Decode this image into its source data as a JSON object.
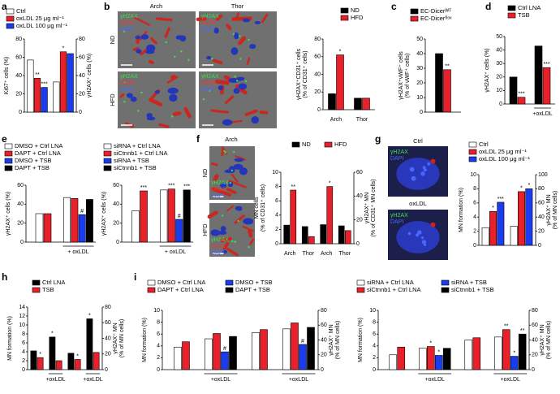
{
  "panel_labels": [
    "a",
    "b",
    "c",
    "d",
    "e",
    "f",
    "g",
    "h",
    "i"
  ],
  "images": {
    "b": {
      "columns": [
        "Arch",
        "Thor"
      ],
      "rows": [
        "ND",
        "HFD"
      ],
      "channels": [
        "γH2AX",
        "CD31",
        "DAPI"
      ]
    },
    "f": {
      "column": "Arch",
      "rows": [
        "ND",
        "HFD"
      ],
      "channels": [
        "γH2AX",
        "CD31",
        "DAPI"
      ]
    },
    "g": {
      "rows": [
        "Ctrl",
        "oxLDL"
      ],
      "channels": [
        "γH2AX",
        "DAPI"
      ]
    }
  },
  "chart_data": [
    {
      "type": "bar",
      "ylabel": [
        "Ki67⁺ cells (%)"
      ],
      "y2label": [
        "γH2AX⁺ cells (%)"
      ],
      "ylim": [
        0,
        80
      ],
      "yticks": [
        0,
        20,
        40,
        60,
        80
      ],
      "y2lim": [
        0,
        80
      ],
      "y2ticks": [
        0,
        20,
        40,
        60,
        80
      ],
      "categories": [
        null,
        null
      ],
      "category_axis": [
        "y",
        "y2"
      ],
      "series": [
        {
          "name": "Ctrl",
          "color": "#ffffff",
          "values": [
            57,
            33
          ]
        },
        {
          "name": "oxLDL 25 μg ml⁻¹",
          "color": "#e8202a",
          "values": [
            37,
            66
          ],
          "significance": [
            "**",
            "*"
          ]
        },
        {
          "name": "oxLDL 100 μg ml⁻¹",
          "color": "#1a3cf0",
          "values": [
            27,
            64
          ],
          "significance": [
            "***",
            null
          ]
        }
      ]
    },
    {
      "type": "bar",
      "ylabel": [
        "γH2AX⁺CD31⁺ cells",
        "(% of CD31⁺ cells)"
      ],
      "ylim": [
        0,
        80
      ],
      "yticks": [
        0,
        20,
        40,
        60,
        80
      ],
      "categories": [
        "Arch",
        "Thor"
      ],
      "series": [
        {
          "name": "ND",
          "color": "#000000",
          "values": [
            18,
            13
          ]
        },
        {
          "name": "HFD",
          "color": "#e8202a",
          "values": [
            62,
            13
          ],
          "significance": [
            "*",
            null
          ]
        }
      ]
    },
    {
      "type": "bar",
      "ylabel": [
        "γH2AX⁺vWF⁺ cells",
        "(% of vWF⁺ cells)"
      ],
      "ylim": [
        0,
        50
      ],
      "yticks": [
        0,
        10,
        20,
        30,
        40,
        50
      ],
      "categories": [
        null
      ],
      "series": [
        {
          "name": "EC-Dicerᵂᵀ",
          "color": "#000000",
          "values": [
            40
          ]
        },
        {
          "name": "EC-Dicerᶠˡᵒˣ",
          "color": "#e8202a",
          "values": [
            29
          ],
          "significance": [
            "**"
          ]
        }
      ]
    },
    {
      "type": "bar",
      "ylabel": [
        "γH2AX⁺ cells (%)"
      ],
      "ylim": [
        0,
        50
      ],
      "yticks": [
        0,
        10,
        20,
        30,
        40,
        50
      ],
      "categories": [
        null,
        "+oxLDL"
      ],
      "series": [
        {
          "name": "Ctrl LNA",
          "color": "#000000",
          "values": [
            20,
            43
          ]
        },
        {
          "name": "TSB",
          "color": "#e8202a",
          "values": [
            5,
            27
          ],
          "significance": [
            "***",
            "***"
          ]
        }
      ]
    },
    {
      "type": "bar",
      "ylabel": [
        "γH2AX⁺ cells (%)"
      ],
      "ylim": [
        0,
        60
      ],
      "yticks": [
        0,
        20,
        40,
        60
      ],
      "categories": [
        null,
        "+ oxLDL"
      ],
      "series": [
        {
          "name": "DMSO + Ctrl LNA",
          "color": "#ffffff",
          "values": [
            30,
            47
          ]
        },
        {
          "name": "DAPT + Ctrl LNA",
          "color": "#e8202a",
          "values": [
            30,
            46
          ]
        },
        {
          "name": "DMSO + TSB",
          "color": "#1a3cf0",
          "values": [
            null,
            29
          ],
          "significance": [
            null,
            "#"
          ]
        },
        {
          "name": "DAPT + TSB",
          "color": "#000000",
          "values": [
            null,
            45
          ]
        }
      ]
    },
    {
      "type": "bar",
      "ylabel": [
        "γH2AX⁺ cells (%)"
      ],
      "ylim": [
        0,
        60
      ],
      "yticks": [
        0,
        20,
        40,
        60
      ],
      "categories": [
        null,
        "+ oxLDL"
      ],
      "series": [
        {
          "name": "siRNA + Ctrl LNA",
          "color": "#ffffff",
          "values": [
            33,
            55
          ]
        },
        {
          "name": "siCtnnb1 + Ctrl LNA",
          "color": "#e8202a",
          "values": [
            54,
            56
          ],
          "significance": [
            "***",
            "***"
          ]
        },
        {
          "name": "siRNA + TSB",
          "color": "#1a3cf0",
          "values": [
            null,
            24
          ],
          "significance": [
            null,
            "#"
          ]
        },
        {
          "name": "siCtnnb1 + TSB",
          "color": "#000000",
          "values": [
            null,
            55
          ],
          "significance": [
            null,
            "***"
          ]
        }
      ]
    },
    {
      "type": "bar",
      "ylabel": [
        "MN cells",
        "(% of CD31⁺ cells)"
      ],
      "y2label": [
        "γH2AX⁺ MN",
        "(% of CD31⁺ MN cells)"
      ],
      "ylim": [
        0,
        10
      ],
      "yticks": [
        0,
        2,
        4,
        6,
        8,
        10
      ],
      "y2lim": [
        0,
        60
      ],
      "y2ticks": [
        0,
        20,
        40,
        60
      ],
      "categories": [
        "Arch",
        "Thor",
        "Arch",
        "Thor"
      ],
      "category_axis": [
        "y",
        "y",
        "y2",
        "y2"
      ],
      "series": [
        {
          "name": "ND",
          "color": "#000000",
          "values": [
            2.6,
            2.4,
            16,
            15
          ]
        },
        {
          "name": "HFD",
          "color": "#e8202a",
          "values": [
            7.5,
            1.0,
            48,
            11
          ],
          "significance": [
            "**",
            null,
            "*",
            null
          ]
        }
      ]
    },
    {
      "type": "bar",
      "ylabel": [
        "MN formation (%)"
      ],
      "y2label": [
        "γH2AX⁺ MN",
        "(% of MN cells)"
      ],
      "ylim": [
        0,
        10
      ],
      "yticks": [
        0,
        2,
        4,
        6,
        8,
        10
      ],
      "y2lim": [
        0,
        100
      ],
      "y2ticks": [
        0,
        20,
        40,
        60,
        80,
        100
      ],
      "categories": [
        null,
        null
      ],
      "category_axis": [
        "y",
        "y2"
      ],
      "series": [
        {
          "name": "Ctrl",
          "color": "#ffffff",
          "values": [
            2.5,
            27
          ]
        },
        {
          "name": "oxLDL 25 μg ml⁻¹",
          "color": "#e8202a",
          "values": [
            4.8,
            76
          ],
          "significance": [
            "*",
            "*"
          ]
        },
        {
          "name": "oxLDL 100 μg ml⁻¹",
          "color": "#1a3cf0",
          "values": [
            6.1,
            80
          ],
          "significance": [
            "***",
            "*"
          ]
        }
      ]
    },
    {
      "type": "bar",
      "ylabel": [
        "MN formation (%)"
      ],
      "y2label": [
        "γH2AX⁺ MN",
        "(% of MN cells)"
      ],
      "ylim": [
        0,
        14
      ],
      "yticks": [
        0,
        2,
        4,
        6,
        8,
        10,
        12,
        14
      ],
      "y2lim": [
        0,
        80
      ],
      "y2ticks": [
        0,
        20,
        40,
        60,
        80
      ],
      "categories": [
        null,
        "+oxLDL",
        null,
        "+oxLDL"
      ],
      "category_axis": [
        "y",
        "y",
        "y2",
        "y2"
      ],
      "series": [
        {
          "name": "Ctrl LNA",
          "color": "#000000",
          "values": [
            4.2,
            7.3,
            21,
            65
          ],
          "significance": [
            null,
            "*",
            null,
            "*"
          ]
        },
        {
          "name": "TSB",
          "color": "#e8202a",
          "values": [
            2.7,
            2.0,
            13,
            22
          ],
          "significance": [
            "*",
            null,
            "*",
            null
          ]
        }
      ]
    },
    {
      "type": "bar",
      "ylabel": [
        "MN formation (%)"
      ],
      "y2label": [
        "γH2AX⁺ MN",
        "(% of MN cells)"
      ],
      "ylim": [
        0,
        10
      ],
      "yticks": [
        0,
        2,
        4,
        6,
        8,
        10
      ],
      "y2lim": [
        0,
        80
      ],
      "y2ticks": [
        0,
        20,
        40,
        60,
        80
      ],
      "categories": [
        null,
        "+oxLDL",
        null,
        "+oxLDL"
      ],
      "category_axis": [
        "y",
        "y",
        "y2",
        "y2"
      ],
      "series": [
        {
          "name": "DMSO + Ctrl LNA",
          "color": "#ffffff",
          "values": [
            3.8,
            5.2,
            50,
            55
          ]
        },
        {
          "name": "DAPT + Ctrl LNA",
          "color": "#e8202a",
          "values": [
            4.7,
            6.1,
            54,
            63
          ]
        },
        {
          "name": "DMSO + TSB",
          "color": "#1a3cf0",
          "values": [
            null,
            3.0,
            null,
            34
          ],
          "significance": [
            null,
            "#",
            null,
            "#"
          ]
        },
        {
          "name": "DAPT + TSB",
          "color": "#000000",
          "values": [
            null,
            5.6,
            null,
            57
          ]
        }
      ]
    },
    {
      "type": "bar",
      "ylabel": [
        "MN formation (%)"
      ],
      "y2label": [
        "γH2AX⁺ MN",
        "(% of MN cells)"
      ],
      "ylim": [
        0,
        10
      ],
      "yticks": [
        0,
        2,
        4,
        6,
        8,
        10
      ],
      "y2lim": [
        0,
        80
      ],
      "y2ticks": [
        0,
        20,
        40,
        60,
        80
      ],
      "categories": [
        null,
        "+oxLDL",
        null,
        "+oxLDL"
      ],
      "category_axis": [
        "y",
        "y",
        "y2",
        "y2"
      ],
      "series": [
        {
          "name": "siRNA + Ctrl LNA",
          "color": "#ffffff",
          "values": [
            2.5,
            3.6,
            40,
            44
          ]
        },
        {
          "name": "siCtnnb1 + Ctrl LNA",
          "color": "#e8202a",
          "values": [
            3.8,
            3.9,
            43,
            54
          ],
          "significance": [
            null,
            "*",
            null,
            "**"
          ]
        },
        {
          "name": "siRNA + TSB",
          "color": "#1a3cf0",
          "values": [
            null,
            2.4,
            null,
            18
          ],
          "significance": [
            null,
            "*",
            null,
            "*"
          ]
        },
        {
          "name": "siCtnnb1 + TSB",
          "color": "#000000",
          "values": [
            null,
            3.6,
            null,
            48
          ],
          "significance": [
            null,
            null,
            null,
            "**"
          ]
        }
      ]
    }
  ]
}
